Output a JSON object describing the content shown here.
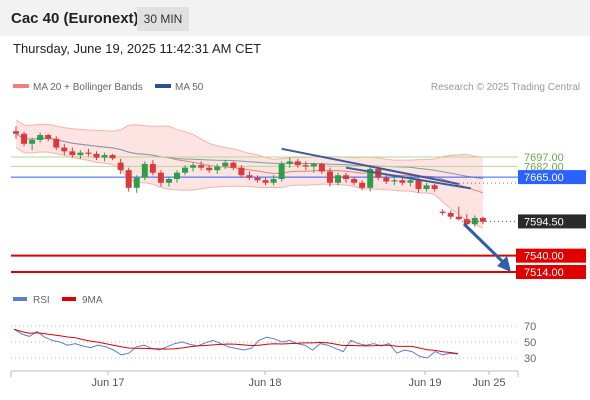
{
  "header": {
    "title": "Cac 40 (Euronext)",
    "timeframe": "30 MIN",
    "datetime": "Thursday, June 19, 2025 11:42:31 AM CET"
  },
  "legend": {
    "bollinger_label": "MA 20 + Bollinger Bands",
    "ma50_label": "MA 50",
    "bollinger_color": "#f08080",
    "ma50_color": "#2e5090"
  },
  "credit": "Research © 2025 Trading Central",
  "rsi_legend": {
    "rsi_label": "RSI",
    "ma_label": "9MA",
    "rsi_color": "#5b7fd6",
    "ma_color": "#e00000"
  },
  "chart_data": {
    "type": "candlestick",
    "price_axis_unit_note": "",
    "levels": [
      {
        "value": 7697.0,
        "label": "7697.00",
        "kind": "resistance-minor",
        "color": "#8bc34a"
      },
      {
        "value": 7682.0,
        "label": "7682.00",
        "kind": "resistance-minor",
        "color": "#8bc34a"
      },
      {
        "value": 7665.0,
        "label": "7665.00",
        "kind": "pivot",
        "color": "#2962ff"
      },
      {
        "value": 7594.5,
        "label": "7594.50",
        "kind": "last-price",
        "color": "#333333"
      },
      {
        "value": 7540.0,
        "label": "7540.00",
        "kind": "support",
        "color": "#e00000"
      },
      {
        "value": 7514.0,
        "label": "7514.00",
        "kind": "support",
        "color": "#e00000"
      }
    ],
    "x_tick_labels": [
      "Jun 17",
      "Jun 18",
      "Jun 19",
      "Jun 25"
    ],
    "x_tick_index": [
      16,
      33,
      49,
      56
    ],
    "candles": [
      {
        "o": 7738,
        "h": 7746,
        "l": 7726,
        "c": 7734
      },
      {
        "o": 7734,
        "h": 7737,
        "l": 7714,
        "c": 7718
      },
      {
        "o": 7718,
        "h": 7728,
        "l": 7708,
        "c": 7724
      },
      {
        "o": 7724,
        "h": 7736,
        "l": 7720,
        "c": 7732
      },
      {
        "o": 7732,
        "h": 7734,
        "l": 7722,
        "c": 7726
      },
      {
        "o": 7726,
        "h": 7730,
        "l": 7708,
        "c": 7712
      },
      {
        "o": 7712,
        "h": 7718,
        "l": 7700,
        "c": 7706
      },
      {
        "o": 7706,
        "h": 7712,
        "l": 7696,
        "c": 7700
      },
      {
        "o": 7700,
        "h": 7708,
        "l": 7694,
        "c": 7704
      },
      {
        "o": 7704,
        "h": 7710,
        "l": 7698,
        "c": 7702
      },
      {
        "o": 7702,
        "h": 7706,
        "l": 7692,
        "c": 7696
      },
      {
        "o": 7696,
        "h": 7704,
        "l": 7690,
        "c": 7700
      },
      {
        "o": 7700,
        "h": 7702,
        "l": 7692,
        "c": 7695
      },
      {
        "o": 7688,
        "h": 7694,
        "l": 7670,
        "c": 7676
      },
      {
        "o": 7676,
        "h": 7680,
        "l": 7642,
        "c": 7648
      },
      {
        "o": 7648,
        "h": 7668,
        "l": 7640,
        "c": 7664
      },
      {
        "o": 7664,
        "h": 7690,
        "l": 7660,
        "c": 7686
      },
      {
        "o": 7686,
        "h": 7692,
        "l": 7668,
        "c": 7672
      },
      {
        "o": 7672,
        "h": 7676,
        "l": 7650,
        "c": 7656
      },
      {
        "o": 7656,
        "h": 7666,
        "l": 7650,
        "c": 7662
      },
      {
        "o": 7662,
        "h": 7676,
        "l": 7656,
        "c": 7672
      },
      {
        "o": 7672,
        "h": 7684,
        "l": 7668,
        "c": 7680
      },
      {
        "o": 7680,
        "h": 7688,
        "l": 7674,
        "c": 7684
      },
      {
        "o": 7684,
        "h": 7690,
        "l": 7676,
        "c": 7680
      },
      {
        "o": 7680,
        "h": 7684,
        "l": 7672,
        "c": 7676
      },
      {
        "o": 7676,
        "h": 7686,
        "l": 7670,
        "c": 7682
      },
      {
        "o": 7682,
        "h": 7692,
        "l": 7678,
        "c": 7688
      },
      {
        "o": 7688,
        "h": 7690,
        "l": 7676,
        "c": 7680
      },
      {
        "o": 7680,
        "h": 7684,
        "l": 7664,
        "c": 7668
      },
      {
        "o": 7668,
        "h": 7674,
        "l": 7660,
        "c": 7664
      },
      {
        "o": 7664,
        "h": 7668,
        "l": 7656,
        "c": 7660
      },
      {
        "o": 7660,
        "h": 7664,
        "l": 7652,
        "c": 7656
      },
      {
        "o": 7656,
        "h": 7668,
        "l": 7652,
        "c": 7662
      },
      {
        "o": 7662,
        "h": 7690,
        "l": 7658,
        "c": 7686
      },
      {
        "o": 7686,
        "h": 7696,
        "l": 7680,
        "c": 7690
      },
      {
        "o": 7690,
        "h": 7694,
        "l": 7680,
        "c": 7684
      },
      {
        "o": 7684,
        "h": 7690,
        "l": 7676,
        "c": 7682
      },
      {
        "o": 7682,
        "h": 7688,
        "l": 7672,
        "c": 7686
      },
      {
        "o": 7686,
        "h": 7688,
        "l": 7670,
        "c": 7674
      },
      {
        "o": 7674,
        "h": 7680,
        "l": 7650,
        "c": 7656
      },
      {
        "o": 7656,
        "h": 7672,
        "l": 7652,
        "c": 7668
      },
      {
        "o": 7668,
        "h": 7672,
        "l": 7656,
        "c": 7662
      },
      {
        "o": 7662,
        "h": 7666,
        "l": 7652,
        "c": 7656
      },
      {
        "o": 7656,
        "h": 7660,
        "l": 7644,
        "c": 7648
      },
      {
        "o": 7648,
        "h": 7682,
        "l": 7642,
        "c": 7678
      },
      {
        "o": 7678,
        "h": 7682,
        "l": 7660,
        "c": 7664
      },
      {
        "o": 7664,
        "h": 7668,
        "l": 7654,
        "c": 7658
      },
      {
        "o": 7658,
        "h": 7666,
        "l": 7652,
        "c": 7660
      },
      {
        "o": 7660,
        "h": 7664,
        "l": 7652,
        "c": 7656
      },
      {
        "o": 7656,
        "h": 7666,
        "l": 7650,
        "c": 7660
      },
      {
        "o": 7660,
        "h": 7664,
        "l": 7640,
        "c": 7646
      },
      {
        "o": 7646,
        "h": 7656,
        "l": 7642,
        "c": 7652
      },
      {
        "o": 7652,
        "h": 7654,
        "l": 7642,
        "c": 7646
      },
      {
        "o": 7610,
        "h": 7614,
        "l": 7604,
        "c": 7608
      },
      {
        "o": 7608,
        "h": 7612,
        "l": 7598,
        "c": 7602
      },
      {
        "o": 7602,
        "h": 7618,
        "l": 7596,
        "c": 7598
      },
      {
        "o": 7598,
        "h": 7606,
        "l": 7584,
        "c": 7590
      },
      {
        "o": 7590,
        "h": 7604,
        "l": 7586,
        "c": 7600
      },
      {
        "o": 7600,
        "h": 7602,
        "l": 7590,
        "c": 7594
      }
    ],
    "rsi": {
      "range": [
        20,
        80
      ],
      "ticks": [
        70,
        50,
        30
      ],
      "values": [
        66,
        60,
        57,
        63,
        56,
        52,
        50,
        46,
        48,
        45,
        43,
        46,
        44,
        40,
        34,
        36,
        44,
        46,
        42,
        40,
        44,
        48,
        50,
        47,
        45,
        49,
        52,
        48,
        44,
        42,
        40,
        42,
        52,
        56,
        54,
        50,
        52,
        48,
        46,
        40,
        48,
        46,
        42,
        38,
        52,
        48,
        46,
        48,
        45,
        48,
        36,
        40,
        38,
        32,
        30,
        38,
        34,
        36,
        35
      ]
    }
  }
}
